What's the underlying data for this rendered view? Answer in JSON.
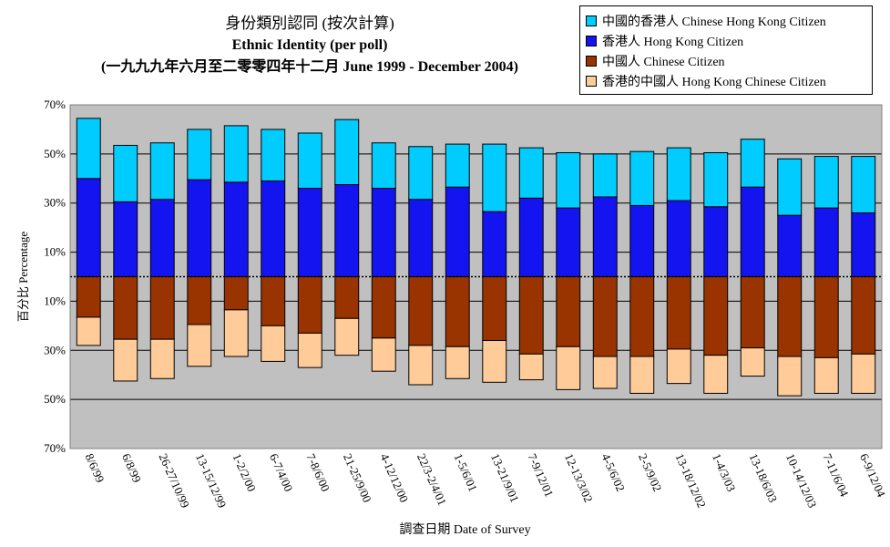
{
  "chart_data": {
    "type": "bar",
    "title": "身份類別認同 (按次計算)",
    "subtitle": "Ethnic Identity (per poll)",
    "subtitle2": "(一九九九年六月至二零零四年十二月 June 1999 - December 2004)",
    "xlabel": "調查日期 Date of Survey",
    "ylabel": "百分比 Percentage",
    "ylim": [
      -70,
      70
    ],
    "yticks": [
      70,
      50,
      30,
      10,
      -10,
      -30,
      -50,
      -70
    ],
    "ytick_labels": [
      "70%",
      "50%",
      "30%",
      "10%",
      "10%",
      "30%",
      "50%",
      "70%"
    ],
    "grid": true,
    "legend_position": "top-right",
    "plot_background": "#c0c0c0",
    "categories": [
      "8/6/99",
      "6/8/99",
      "26-27/10/99",
      "13-15/12/99",
      "1-2/2/00",
      "6-7/4/00",
      "7-8/6/00",
      "21-25/9/00",
      "4-12/12/00",
      "22/3-2/4/01",
      "1-5/6/01",
      "13-21/9/01",
      "7-9/12/01",
      "12-13/3/02",
      "4-5/6/02",
      "2-5/9/02",
      "13-18/12/02",
      "1-4/3/03",
      "13-18/6/03",
      "10-14/12/03",
      "7-11/6/04",
      "6-9/12/04"
    ],
    "series": [
      {
        "name": "香港人 Hong Kong Citizen",
        "color": "#1414f0",
        "side": "up",
        "values": [
          40,
          30.5,
          31.5,
          39.5,
          38.5,
          39,
          36,
          37.5,
          36,
          31.5,
          36.5,
          26.5,
          32,
          28,
          32.5,
          29,
          31,
          28.5,
          36.5,
          25,
          28,
          26
        ]
      },
      {
        "name": "中國的香港人 Chinese Hong Kong Citizen",
        "color": "#00ccff",
        "side": "up",
        "values": [
          24.5,
          23,
          23,
          20.5,
          23,
          21,
          22.5,
          26.5,
          18.5,
          21.5,
          17.5,
          27.5,
          20.5,
          22.5,
          17.5,
          22,
          21.5,
          22,
          19.5,
          23,
          21,
          23
        ]
      },
      {
        "name": "中國人 Chinese Citizen",
        "color": "#993300",
        "side": "down",
        "values": [
          16.5,
          25.5,
          25.5,
          19.5,
          13.5,
          20,
          23,
          17,
          25,
          28,
          28.5,
          26,
          31.5,
          28.5,
          32.5,
          32.5,
          29.5,
          32,
          29,
          32.5,
          33,
          31.5
        ]
      },
      {
        "name": "香港的中國人 Hong Kong Chinese Citizen",
        "color": "#ffcc99",
        "side": "down",
        "values": [
          11.5,
          17,
          16,
          17,
          19,
          14.5,
          14,
          15,
          13.5,
          16,
          13,
          17,
          10.5,
          17.5,
          13,
          15,
          14,
          15.5,
          11.5,
          16,
          14.5,
          16
        ]
      }
    ],
    "legend_order": [
      1,
      0,
      2,
      3
    ]
  }
}
